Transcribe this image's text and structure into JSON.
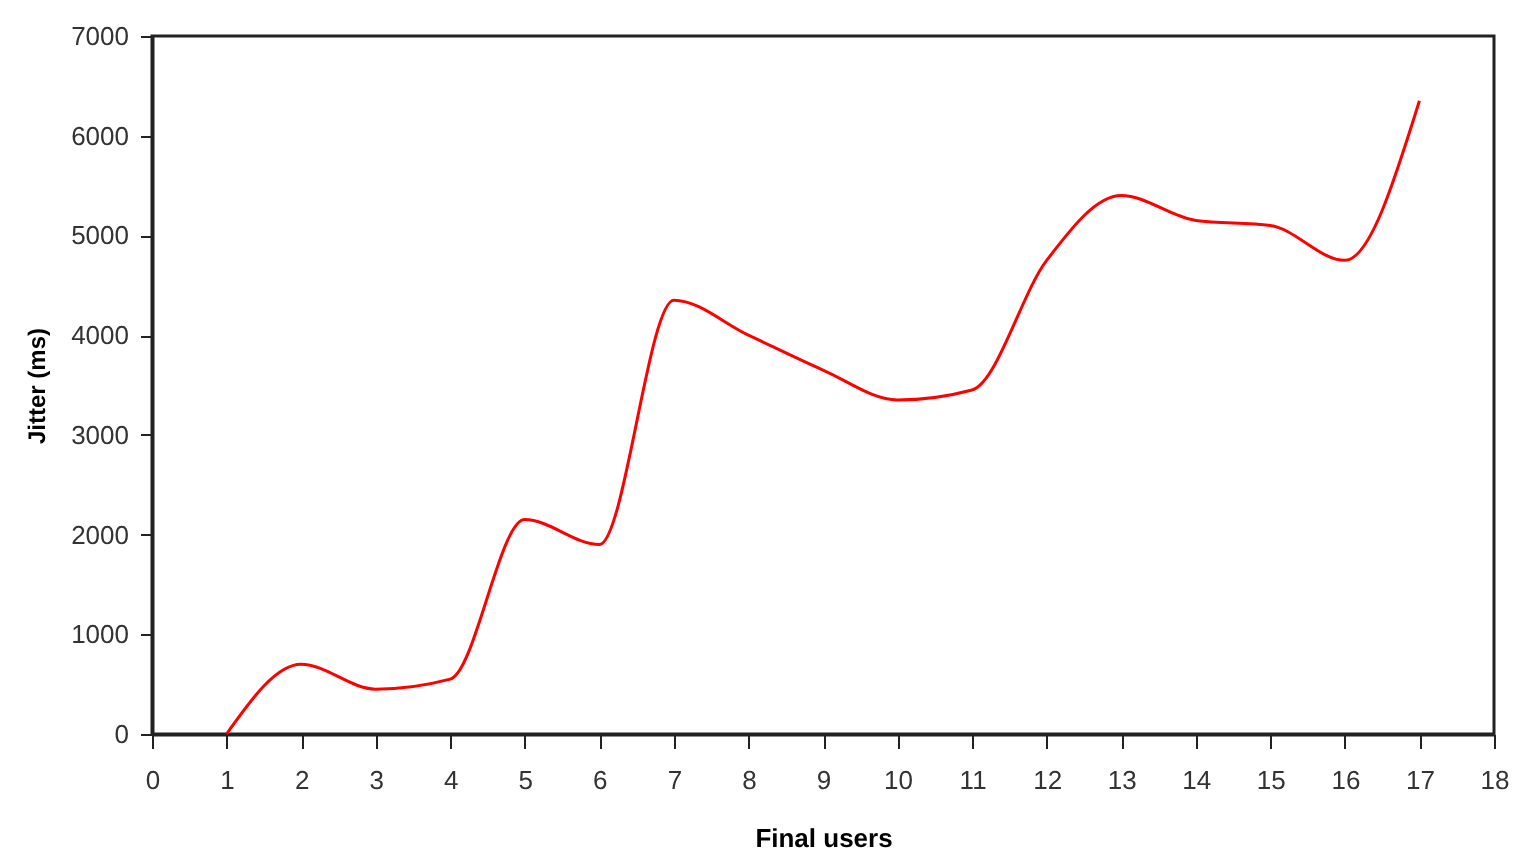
{
  "chart_data": {
    "type": "line",
    "xlabel": "Final users",
    "ylabel": "Jitter (ms)",
    "x": [
      1,
      2,
      3,
      4,
      5,
      6,
      7,
      8,
      9,
      10,
      11,
      12,
      13,
      14,
      15,
      16,
      17
    ],
    "series": [
      {
        "color": "#ff0000",
        "values": [
          0,
          700,
          450,
          550,
          2150,
          1900,
          4350,
          4000,
          3650,
          3350,
          3450,
          4750,
          5400,
          5150,
          5100,
          4750,
          6350
        ]
      }
    ],
    "xlim": [
      0,
      18
    ],
    "xticks": [
      0,
      1,
      2,
      3,
      4,
      5,
      6,
      7,
      8,
      9,
      10,
      11,
      12,
      13,
      14,
      15,
      16,
      17,
      18
    ],
    "ylim": [
      0,
      7000
    ],
    "yticks": [
      0,
      1000,
      2000,
      3000,
      4000,
      5000,
      6000,
      7000
    ],
    "grid": false,
    "legend": false,
    "marker": "none",
    "line_style": "solid"
  }
}
